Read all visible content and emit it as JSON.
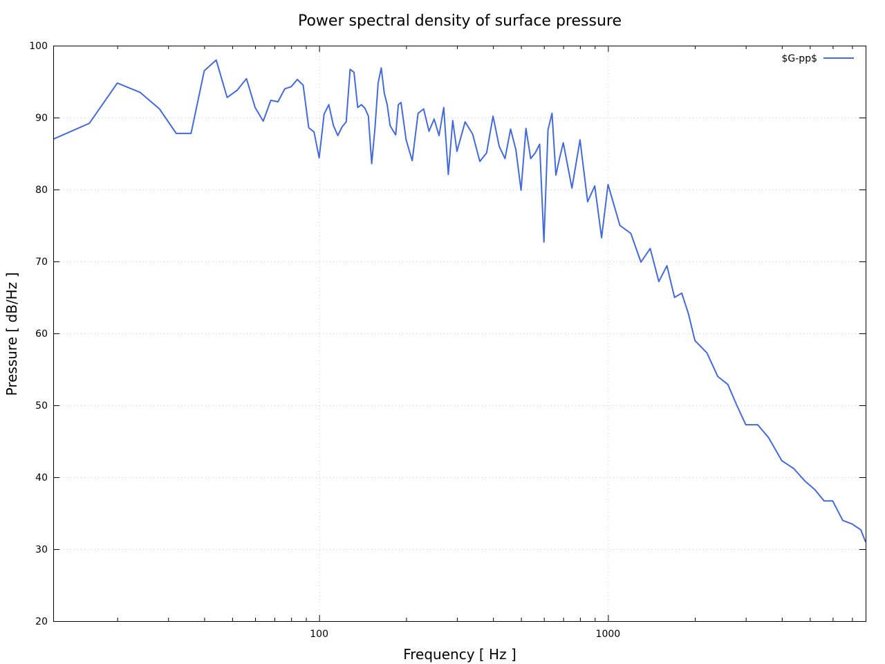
{
  "chart_data": {
    "type": "line",
    "title": "Power spectral density of surface pressure",
    "xlabel": "Frequency [ Hz ]",
    "ylabel": "Pressure [ dB/Hz ]",
    "xscale": "log",
    "xlim": [
      12,
      7800
    ],
    "ylim": [
      20,
      100
    ],
    "xticks_major": [
      100,
      1000
    ],
    "xtick_labels": [
      "100",
      "1000"
    ],
    "yticks": [
      20,
      30,
      40,
      50,
      60,
      70,
      80,
      90,
      100
    ],
    "ytick_labels": [
      "20",
      "30",
      "40",
      "50",
      "60",
      "70",
      "80",
      "90",
      "100"
    ],
    "grid": true,
    "legend_position": "top-right",
    "colors": {
      "series": "#4169e1",
      "axis": "#000000",
      "grid": "#c8c8c8"
    },
    "series": [
      {
        "name": "$G-pp$",
        "x": [
          12,
          16,
          20,
          24,
          28,
          32,
          36,
          40,
          44,
          48,
          52,
          56,
          60,
          64,
          68,
          72,
          76,
          80,
          84,
          88,
          92,
          96,
          100,
          104,
          108,
          112,
          116,
          120,
          124,
          128,
          132,
          136,
          140,
          144,
          148,
          152,
          156,
          160,
          164,
          168,
          172,
          176,
          180,
          184,
          188,
          192,
          196,
          200,
          210,
          220,
          230,
          240,
          250,
          260,
          270,
          280,
          290,
          300,
          320,
          340,
          360,
          380,
          400,
          420,
          440,
          460,
          480,
          500,
          520,
          540,
          560,
          580,
          600,
          620,
          640,
          660,
          680,
          700,
          750,
          800,
          850,
          900,
          950,
          1000,
          1100,
          1200,
          1300,
          1400,
          1500,
          1600,
          1700,
          1800,
          1900,
          2000,
          2200,
          2400,
          2600,
          2800,
          3000,
          3300,
          3600,
          4000,
          4400,
          4800,
          5200,
          5600,
          6000,
          6500,
          7000,
          7500,
          7800
        ],
        "y": [
          87.0,
          89.2,
          94.8,
          93.5,
          91.2,
          87.8,
          87.8,
          96.5,
          98.0,
          92.8,
          93.8,
          95.4,
          91.4,
          89.5,
          92.4,
          92.2,
          94.0,
          94.3,
          95.3,
          94.5,
          88.6,
          88.0,
          84.4,
          90.5,
          91.8,
          88.9,
          87.5,
          88.7,
          89.4,
          96.7,
          96.3,
          91.4,
          91.8,
          91.3,
          90.2,
          83.6,
          88.5,
          94.8,
          96.9,
          93.4,
          91.8,
          88.9,
          88.2,
          87.6,
          91.8,
          92.1,
          89.5,
          86.9,
          84.0,
          90.6,
          91.2,
          88.1,
          89.8,
          87.5,
          91.4,
          82.1,
          89.6,
          85.3,
          89.4,
          87.7,
          83.9,
          85.1,
          90.2,
          86.0,
          84.3,
          88.4,
          85.5,
          79.9,
          88.5,
          84.3,
          85.1,
          86.3,
          72.7,
          88.3,
          90.6,
          82.0,
          84.4,
          86.5,
          80.2,
          86.9,
          78.3,
          80.5,
          73.3,
          80.7,
          75.0,
          73.9,
          69.9,
          71.8,
          67.2,
          69.4,
          65.0,
          65.6,
          62.7,
          59.0,
          57.3,
          54.0,
          52.9,
          49.9,
          47.3,
          47.3,
          45.5,
          42.3,
          41.2,
          39.5,
          38.3,
          36.7,
          36.7,
          34.0,
          33.5,
          32.7,
          31.0
        ]
      }
    ]
  }
}
